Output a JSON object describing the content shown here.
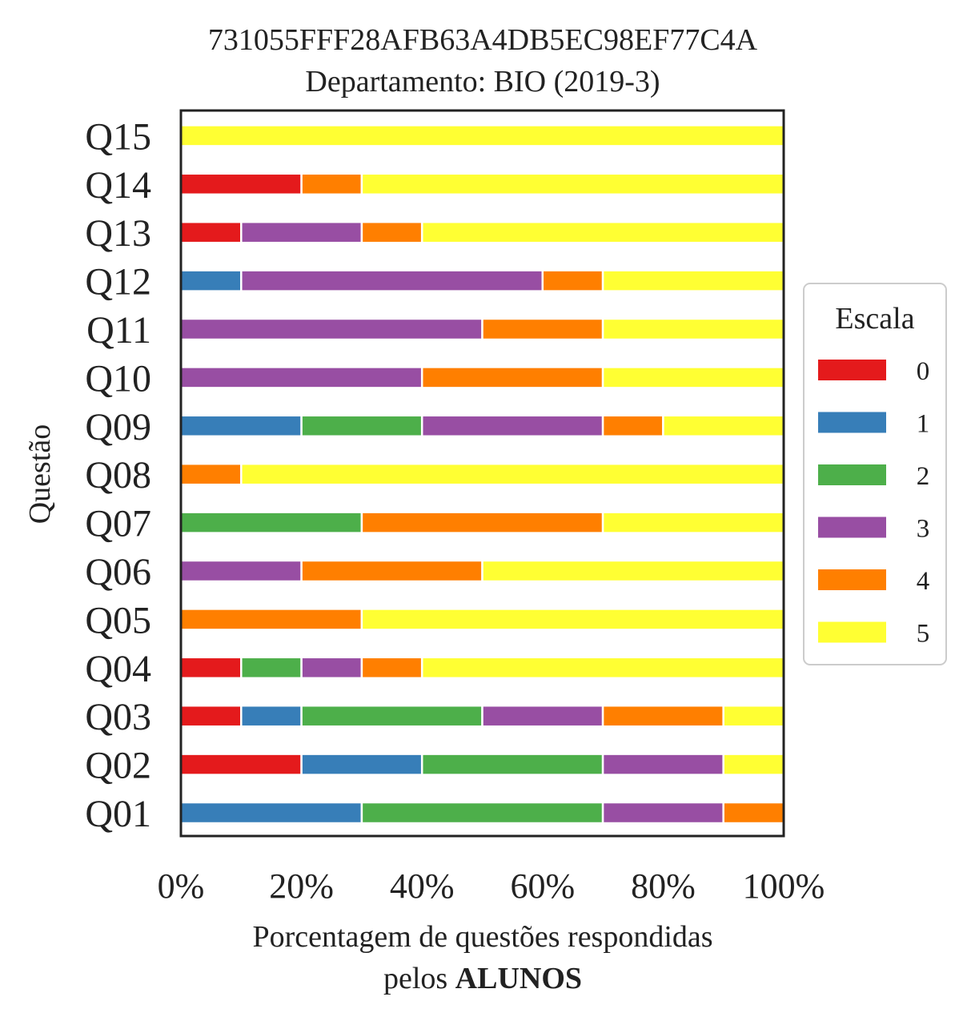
{
  "chart_data": {
    "type": "bar",
    "orientation": "horizontal",
    "stacked": true,
    "title": "731055FFF28AFB63A4DB5EC98EF77C4A",
    "subtitle": "Departamento: BIO (2019-3)",
    "ylabel": "Questão",
    "xlabel_line1": "Porcentagem de questões respondidas",
    "xlabel_line2_prefix": "pelos ",
    "xlabel_line2_bold": "ALUNOS",
    "xlim": [
      0,
      100
    ],
    "xticks": [
      "0%",
      "20%",
      "40%",
      "60%",
      "80%",
      "100%"
    ],
    "categories": [
      "Q01",
      "Q02",
      "Q03",
      "Q04",
      "Q05",
      "Q06",
      "Q07",
      "Q08",
      "Q09",
      "Q10",
      "Q11",
      "Q12",
      "Q13",
      "Q14",
      "Q15"
    ],
    "legend_title": "Escala",
    "legend_position": "right",
    "series": [
      {
        "name": "0",
        "color": "#e41a1c",
        "values": [
          0,
          20,
          10,
          10,
          0,
          0,
          0,
          0,
          0,
          0,
          0,
          0,
          10,
          20,
          0
        ]
      },
      {
        "name": "1",
        "color": "#377eb8",
        "values": [
          30,
          20,
          10,
          0,
          0,
          0,
          0,
          0,
          20,
          0,
          0,
          10,
          0,
          0,
          0
        ]
      },
      {
        "name": "2",
        "color": "#4daf4a",
        "values": [
          40,
          30,
          30,
          10,
          0,
          0,
          30,
          0,
          20,
          0,
          0,
          0,
          0,
          0,
          0
        ]
      },
      {
        "name": "3",
        "color": "#984ea3",
        "values": [
          20,
          20,
          20,
          10,
          0,
          20,
          0,
          0,
          30,
          40,
          50,
          50,
          20,
          0,
          0
        ]
      },
      {
        "name": "4",
        "color": "#ff7f00",
        "values": [
          10,
          0,
          20,
          10,
          30,
          30,
          40,
          10,
          10,
          30,
          20,
          10,
          10,
          10,
          0
        ]
      },
      {
        "name": "5",
        "color": "#ffff33",
        "values": [
          0,
          10,
          10,
          60,
          70,
          50,
          30,
          90,
          20,
          30,
          30,
          30,
          60,
          70,
          100
        ]
      }
    ]
  }
}
